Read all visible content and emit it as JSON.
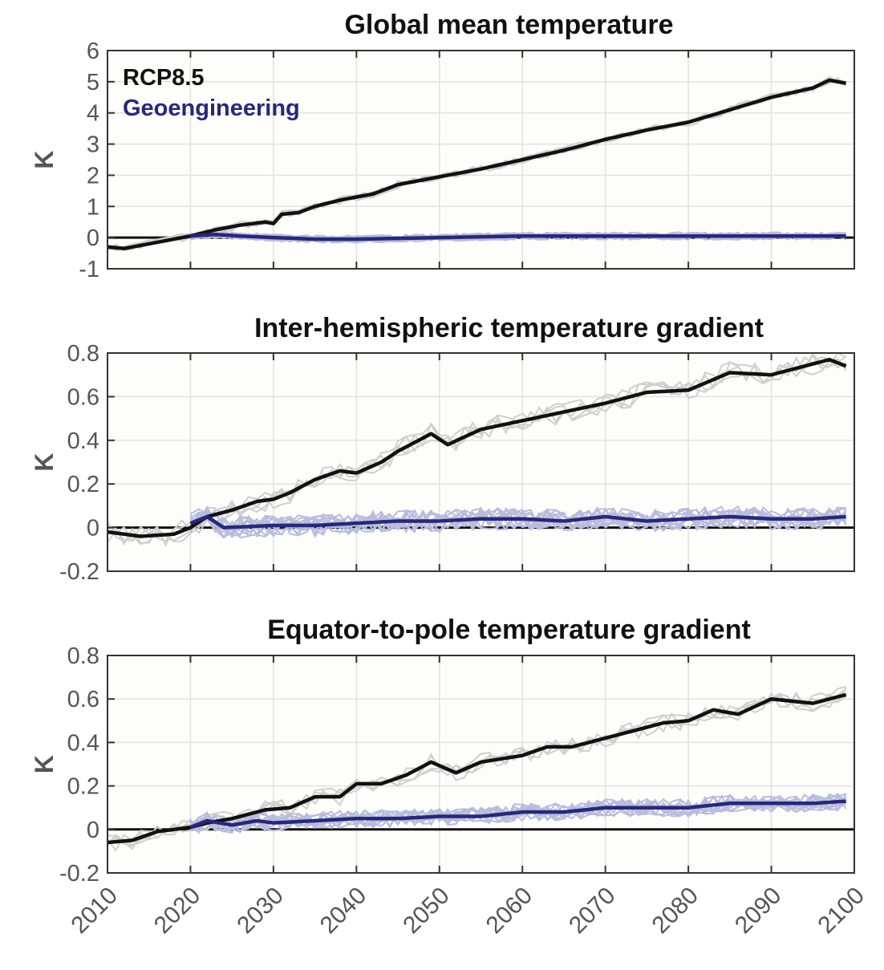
{
  "chart_data": [
    {
      "type": "line",
      "title": "Global mean temperature",
      "ylabel": "K",
      "xlim": [
        2010,
        2100
      ],
      "ylim": [
        -1,
        6
      ],
      "yticks": [
        "-1",
        "0",
        "1",
        "2",
        "3",
        "4",
        "5",
        "6"
      ],
      "ytick_values": [
        -1,
        0,
        1,
        2,
        3,
        4,
        5,
        6
      ],
      "grid": true,
      "legend": {
        "placement": "top-left",
        "entries": [
          {
            "label": "RCP8.5",
            "color": "#111111"
          },
          {
            "label": "Geoengineering",
            "color": "#27287a"
          }
        ]
      },
      "ensemble_noise": 0.12,
      "series": [
        {
          "name": "RCP8.5",
          "color": "#111111",
          "ensemble_color": "#cfcfcf",
          "x": [
            2010,
            2012,
            2015,
            2018,
            2020,
            2023,
            2026,
            2029,
            2030,
            2031,
            2033,
            2035,
            2038,
            2040,
            2042,
            2045,
            2050,
            2055,
            2060,
            2065,
            2070,
            2075,
            2080,
            2085,
            2090,
            2095,
            2097,
            2099
          ],
          "y": [
            -0.3,
            -0.35,
            -0.2,
            -0.05,
            0.05,
            0.25,
            0.4,
            0.5,
            0.45,
            0.75,
            0.8,
            1.0,
            1.2,
            1.3,
            1.4,
            1.7,
            1.95,
            2.2,
            2.5,
            2.8,
            3.15,
            3.45,
            3.7,
            4.1,
            4.5,
            4.8,
            5.05,
            4.95
          ]
        },
        {
          "name": "Geoengineering",
          "color": "#27287a",
          "ensemble_color": "#b9bcdc",
          "x": [
            2020,
            2023,
            2026,
            2030,
            2035,
            2040,
            2050,
            2060,
            2070,
            2080,
            2090,
            2099
          ],
          "y": [
            0.05,
            0.1,
            0.05,
            0.0,
            -0.05,
            -0.05,
            0.0,
            0.05,
            0.05,
            0.05,
            0.05,
            0.05
          ]
        }
      ]
    },
    {
      "type": "line",
      "title": "Inter-hemispheric temperature gradient",
      "ylabel": "K",
      "xlim": [
        2010,
        2100
      ],
      "ylim": [
        -0.2,
        0.8
      ],
      "yticks": [
        "-0.2",
        "0",
        "0.2",
        "0.4",
        "0.6",
        "0.8"
      ],
      "ytick_values": [
        -0.2,
        0,
        0.2,
        0.4,
        0.6,
        0.8
      ],
      "grid": true,
      "ensemble_noise": 0.05,
      "series": [
        {
          "name": "RCP8.5",
          "color": "#111111",
          "ensemble_color": "#cfcfcf",
          "x": [
            2010,
            2014,
            2018,
            2020,
            2022,
            2025,
            2028,
            2030,
            2032,
            2035,
            2038,
            2040,
            2043,
            2045,
            2049,
            2051,
            2055,
            2060,
            2065,
            2070,
            2075,
            2080,
            2085,
            2090,
            2095,
            2097,
            2099
          ],
          "y": [
            -0.02,
            -0.04,
            -0.03,
            0.0,
            0.05,
            0.08,
            0.12,
            0.13,
            0.16,
            0.22,
            0.26,
            0.25,
            0.3,
            0.35,
            0.43,
            0.38,
            0.45,
            0.49,
            0.53,
            0.57,
            0.62,
            0.63,
            0.71,
            0.7,
            0.75,
            0.77,
            0.74
          ]
        },
        {
          "name": "Geoengineering",
          "color": "#27287a",
          "ensemble_color": "#b9bcdc",
          "x": [
            2020,
            2022,
            2024,
            2030,
            2035,
            2040,
            2045,
            2050,
            2055,
            2060,
            2065,
            2070,
            2075,
            2080,
            2085,
            2090,
            2095,
            2099
          ],
          "y": [
            0.02,
            0.05,
            0.0,
            0.01,
            0.01,
            0.02,
            0.03,
            0.03,
            0.04,
            0.04,
            0.03,
            0.05,
            0.03,
            0.04,
            0.05,
            0.04,
            0.04,
            0.05
          ]
        }
      ]
    },
    {
      "type": "line",
      "title": "Equator-to-pole temperature gradient",
      "ylabel": "K",
      "xlim": [
        2010,
        2100
      ],
      "ylim": [
        -0.2,
        0.8
      ],
      "yticks": [
        "-0.2",
        "0",
        "0.2",
        "0.4",
        "0.6",
        "0.8"
      ],
      "ytick_values": [
        -0.2,
        0,
        0.2,
        0.4,
        0.6,
        0.8
      ],
      "xticks": [
        "2010",
        "2020",
        "2030",
        "2040",
        "2050",
        "2060",
        "2070",
        "2080",
        "2090",
        "2100"
      ],
      "grid": true,
      "ensemble_noise": 0.04,
      "series": [
        {
          "name": "RCP8.5",
          "color": "#111111",
          "ensemble_color": "#cfcfcf",
          "x": [
            2010,
            2013,
            2016,
            2020,
            2022,
            2025,
            2027,
            2029,
            2032,
            2035,
            2038,
            2040,
            2043,
            2046,
            2049,
            2052,
            2055,
            2060,
            2063,
            2066,
            2070,
            2073,
            2077,
            2080,
            2083,
            2086,
            2090,
            2095,
            2099
          ],
          "y": [
            -0.06,
            -0.05,
            -0.01,
            0.01,
            0.03,
            0.05,
            0.07,
            0.09,
            0.1,
            0.15,
            0.15,
            0.21,
            0.21,
            0.25,
            0.31,
            0.26,
            0.31,
            0.34,
            0.38,
            0.38,
            0.42,
            0.45,
            0.49,
            0.5,
            0.55,
            0.53,
            0.6,
            0.58,
            0.62
          ]
        },
        {
          "name": "Geoengineering",
          "color": "#27287a",
          "ensemble_color": "#b9bcdc",
          "x": [
            2020,
            2022,
            2025,
            2028,
            2030,
            2035,
            2040,
            2045,
            2050,
            2055,
            2060,
            2065,
            2070,
            2075,
            2080,
            2085,
            2090,
            2095,
            2099
          ],
          "y": [
            0.01,
            0.04,
            0.02,
            0.04,
            0.03,
            0.04,
            0.05,
            0.05,
            0.06,
            0.06,
            0.08,
            0.08,
            0.1,
            0.1,
            0.1,
            0.12,
            0.12,
            0.12,
            0.13
          ]
        }
      ]
    }
  ]
}
